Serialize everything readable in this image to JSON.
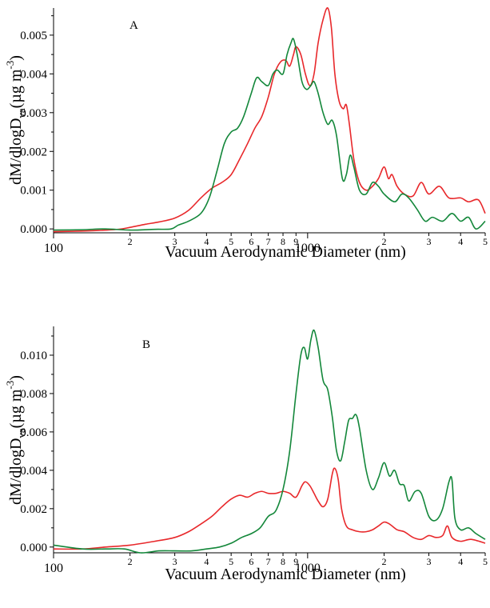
{
  "chart_data": [
    {
      "panel_label": "A",
      "type": "line",
      "xscale": "log",
      "xlim": [
        100,
        5000
      ],
      "ylim": [
        -0.0001,
        0.0057
      ],
      "xlabel": "Vacuum Aerodynamic Diameter (nm)",
      "ylabel": {
        "main": "dM/dlogD",
        "sub": "va",
        "tail": "(µg m",
        "exp": "-3",
        "close": ")"
      },
      "x_tick_labels": [
        {
          "x": 100,
          "label": "100"
        },
        {
          "x": 200,
          "label": "2"
        },
        {
          "x": 300,
          "label": "3"
        },
        {
          "x": 400,
          "label": "4"
        },
        {
          "x": 500,
          "label": "5"
        },
        {
          "x": 600,
          "label": "6"
        },
        {
          "x": 700,
          "label": "7"
        },
        {
          "x": 800,
          "label": "8"
        },
        {
          "x": 900,
          "label": "9"
        },
        {
          "x": 1000,
          "label": "1000"
        },
        {
          "x": 2000,
          "label": "2"
        },
        {
          "x": 3000,
          "label": "3"
        },
        {
          "x": 4000,
          "label": "4"
        },
        {
          "x": 5000,
          "label": "5"
        }
      ],
      "y_ticks": [
        {
          "v": 0.0,
          "label": "0.000"
        },
        {
          "v": 0.001,
          "label": "0.001"
        },
        {
          "v": 0.002,
          "label": "0.002"
        },
        {
          "v": 0.003,
          "label": "0.003"
        },
        {
          "v": 0.004,
          "label": "0.004"
        },
        {
          "v": 0.005,
          "label": "0.005"
        }
      ],
      "series": [
        {
          "color": "#e8282b",
          "points": [
            [
              100,
              -7e-05
            ],
            [
              120,
              -6e-05
            ],
            [
              150,
              -4e-05
            ],
            [
              180,
              -1e-05
            ],
            [
              200,
              4e-05
            ],
            [
              230,
              0.00012
            ],
            [
              260,
              0.00018
            ],
            [
              300,
              0.00028
            ],
            [
              340,
              0.00048
            ],
            [
              380,
              0.0008
            ],
            [
              420,
              0.00105
            ],
            [
              460,
              0.0012
            ],
            [
              500,
              0.0014
            ],
            [
              540,
              0.0018
            ],
            [
              580,
              0.0022
            ],
            [
              620,
              0.0026
            ],
            [
              660,
              0.0029
            ],
            [
              700,
              0.0034
            ],
            [
              740,
              0.004
            ],
            [
              780,
              0.0043
            ],
            [
              820,
              0.00435
            ],
            [
              850,
              0.0042
            ],
            [
              880,
              0.0045
            ],
            [
              900,
              0.0047
            ],
            [
              940,
              0.0045
            ],
            [
              980,
              0.004
            ],
            [
              1020,
              0.0037
            ],
            [
              1060,
              0.004
            ],
            [
              1100,
              0.0048
            ],
            [
              1150,
              0.0054
            ],
            [
              1200,
              0.0057
            ],
            [
              1240,
              0.0052
            ],
            [
              1280,
              0.004
            ],
            [
              1330,
              0.0033
            ],
            [
              1380,
              0.0031
            ],
            [
              1420,
              0.0032
            ],
            [
              1460,
              0.0027
            ],
            [
              1520,
              0.0018
            ],
            [
              1600,
              0.0012
            ],
            [
              1700,
              0.001
            ],
            [
              1800,
              0.0011
            ],
            [
              1900,
              0.0013
            ],
            [
              2000,
              0.0016
            ],
            [
              2080,
              0.0013
            ],
            [
              2150,
              0.0014
            ],
            [
              2250,
              0.0011
            ],
            [
              2400,
              0.0009
            ],
            [
              2600,
              0.00085
            ],
            [
              2800,
              0.0012
            ],
            [
              3000,
              0.0009
            ],
            [
              3300,
              0.0011
            ],
            [
              3600,
              0.0008
            ],
            [
              4000,
              0.0008
            ],
            [
              4300,
              0.0007
            ],
            [
              4700,
              0.00075
            ],
            [
              5000,
              0.0004
            ]
          ]
        },
        {
          "color": "#13873a",
          "points": [
            [
              100,
              -3e-05
            ],
            [
              130,
              -2e-05
            ],
            [
              160,
              0.0
            ],
            [
              200,
              -3e-05
            ],
            [
              250,
              -1e-05
            ],
            [
              290,
              0.0
            ],
            [
              310,
              0.0001
            ],
            [
              340,
              0.0002
            ],
            [
              380,
              0.0004
            ],
            [
              410,
              0.0008
            ],
            [
              440,
              0.0015
            ],
            [
              470,
              0.0022
            ],
            [
              500,
              0.0025
            ],
            [
              530,
              0.0026
            ],
            [
              560,
              0.0029
            ],
            [
              600,
              0.0035
            ],
            [
              630,
              0.0039
            ],
            [
              660,
              0.0038
            ],
            [
              700,
              0.0037
            ],
            [
              730,
              0.004
            ],
            [
              760,
              0.0041
            ],
            [
              800,
              0.004
            ],
            [
              830,
              0.0045
            ],
            [
              860,
              0.0048
            ],
            [
              880,
              0.0049
            ],
            [
              910,
              0.0045
            ],
            [
              950,
              0.0038
            ],
            [
              990,
              0.0036
            ],
            [
              1030,
              0.0037
            ],
            [
              1060,
              0.0038
            ],
            [
              1100,
              0.0035
            ],
            [
              1150,
              0.003
            ],
            [
              1200,
              0.0027
            ],
            [
              1250,
              0.0028
            ],
            [
              1300,
              0.0024
            ],
            [
              1370,
              0.0013
            ],
            [
              1420,
              0.0014
            ],
            [
              1470,
              0.0019
            ],
            [
              1520,
              0.0016
            ],
            [
              1600,
              0.001
            ],
            [
              1700,
              0.0009
            ],
            [
              1800,
              0.0012
            ],
            [
              1900,
              0.0011
            ],
            [
              2000,
              0.0009
            ],
            [
              2200,
              0.0007
            ],
            [
              2350,
              0.0009
            ],
            [
              2500,
              0.0008
            ],
            [
              2700,
              0.0005
            ],
            [
              2900,
              0.0002
            ],
            [
              3100,
              0.0003
            ],
            [
              3400,
              0.0002
            ],
            [
              3700,
              0.0004
            ],
            [
              4000,
              0.0002
            ],
            [
              4300,
              0.0003
            ],
            [
              4600,
              0.0
            ],
            [
              5000,
              0.0002
            ]
          ]
        }
      ]
    },
    {
      "panel_label": "B",
      "type": "line",
      "xscale": "log",
      "xlim": [
        100,
        5000
      ],
      "ylim": [
        -0.0003,
        0.0115
      ],
      "xlabel": "Vacuum Aerodynamic Diameter (nm)",
      "ylabel": {
        "main": "dM/dlogD",
        "sub": "va",
        "tail": "(µg m",
        "exp": "-3",
        "close": ")"
      },
      "x_tick_labels": [
        {
          "x": 100,
          "label": "100"
        },
        {
          "x": 200,
          "label": "2"
        },
        {
          "x": 300,
          "label": "3"
        },
        {
          "x": 400,
          "label": "4"
        },
        {
          "x": 500,
          "label": "5"
        },
        {
          "x": 600,
          "label": "6"
        },
        {
          "x": 700,
          "label": "7"
        },
        {
          "x": 800,
          "label": "8"
        },
        {
          "x": 900,
          "label": "9"
        },
        {
          "x": 1000,
          "label": "1000"
        },
        {
          "x": 2000,
          "label": "2"
        },
        {
          "x": 3000,
          "label": "3"
        },
        {
          "x": 4000,
          "label": "4"
        },
        {
          "x": 5000,
          "label": "5"
        }
      ],
      "y_ticks": [
        {
          "v": 0.0,
          "label": "0.000"
        },
        {
          "v": 0.002,
          "label": "0.002"
        },
        {
          "v": 0.004,
          "label": "0.004"
        },
        {
          "v": 0.006,
          "label": "0.006"
        },
        {
          "v": 0.008,
          "label": "0.008"
        },
        {
          "v": 0.01,
          "label": "0.010"
        }
      ],
      "series": [
        {
          "color": "#e8282b",
          "points": [
            [
              100,
              -0.0001
            ],
            [
              130,
              -0.0001
            ],
            [
              160,
              0.0
            ],
            [
              200,
              0.0001
            ],
            [
              250,
              0.0003
            ],
            [
              300,
              0.0005
            ],
            [
              340,
              0.0008
            ],
            [
              380,
              0.0012
            ],
            [
              420,
              0.0016
            ],
            [
              460,
              0.0021
            ],
            [
              500,
              0.0025
            ],
            [
              540,
              0.0027
            ],
            [
              580,
              0.0026
            ],
            [
              620,
              0.0028
            ],
            [
              660,
              0.0029
            ],
            [
              700,
              0.0028
            ],
            [
              750,
              0.0028
            ],
            [
              800,
              0.0029
            ],
            [
              850,
              0.0028
            ],
            [
              900,
              0.0026
            ],
            [
              950,
              0.0032
            ],
            [
              980,
              0.0034
            ],
            [
              1020,
              0.0032
            ],
            [
              1060,
              0.0028
            ],
            [
              1100,
              0.0024
            ],
            [
              1150,
              0.0021
            ],
            [
              1200,
              0.0025
            ],
            [
              1250,
              0.0038
            ],
            [
              1280,
              0.0041
            ],
            [
              1320,
              0.0035
            ],
            [
              1360,
              0.002
            ],
            [
              1420,
              0.0011
            ],
            [
              1500,
              0.0009
            ],
            [
              1600,
              0.0008
            ],
            [
              1700,
              0.0008
            ],
            [
              1800,
              0.0009
            ],
            [
              1900,
              0.0011
            ],
            [
              2000,
              0.0013
            ],
            [
              2100,
              0.0012
            ],
            [
              2250,
              0.0009
            ],
            [
              2400,
              0.0008
            ],
            [
              2600,
              0.0005
            ],
            [
              2800,
              0.0004
            ],
            [
              3000,
              0.0006
            ],
            [
              3200,
              0.0005
            ],
            [
              3400,
              0.0006
            ],
            [
              3550,
              0.0011
            ],
            [
              3700,
              0.0005
            ],
            [
              4000,
              0.0003
            ],
            [
              4400,
              0.0004
            ],
            [
              5000,
              0.0002
            ]
          ]
        },
        {
          "color": "#13873a",
          "points": [
            [
              100,
              0.0001
            ],
            [
              130,
              -0.0001
            ],
            [
              160,
              -0.0001
            ],
            [
              190,
              -0.0001
            ],
            [
              220,
              -0.0003
            ],
            [
              260,
              -0.0002
            ],
            [
              300,
              -0.0002
            ],
            [
              350,
              -0.0002
            ],
            [
              400,
              -0.0001
            ],
            [
              450,
              0.0
            ],
            [
              500,
              0.0002
            ],
            [
              550,
              0.0005
            ],
            [
              600,
              0.0007
            ],
            [
              650,
              0.001
            ],
            [
              700,
              0.0016
            ],
            [
              750,
              0.0019
            ],
            [
              800,
              0.003
            ],
            [
              850,
              0.005
            ],
            [
              900,
              0.008
            ],
            [
              940,
              0.01
            ],
            [
              970,
              0.0104
            ],
            [
              1000,
              0.0098
            ],
            [
              1030,
              0.0108
            ],
            [
              1060,
              0.0113
            ],
            [
              1100,
              0.0104
            ],
            [
              1150,
              0.0087
            ],
            [
              1200,
              0.0082
            ],
            [
              1250,
              0.0068
            ],
            [
              1300,
              0.005
            ],
            [
              1350,
              0.0045
            ],
            [
              1400,
              0.0055
            ],
            [
              1450,
              0.0066
            ],
            [
              1500,
              0.0067
            ],
            [
              1550,
              0.0069
            ],
            [
              1600,
              0.0062
            ],
            [
              1700,
              0.004
            ],
            [
              1800,
              0.003
            ],
            [
              1900,
              0.0036
            ],
            [
              2000,
              0.0044
            ],
            [
              2100,
              0.0037
            ],
            [
              2200,
              0.004
            ],
            [
              2300,
              0.0033
            ],
            [
              2400,
              0.0032
            ],
            [
              2500,
              0.0024
            ],
            [
              2650,
              0.0029
            ],
            [
              2800,
              0.0028
            ],
            [
              3000,
              0.0016
            ],
            [
              3200,
              0.0014
            ],
            [
              3400,
              0.002
            ],
            [
              3600,
              0.0034
            ],
            [
              3700,
              0.0035
            ],
            [
              3800,
              0.0015
            ],
            [
              4000,
              0.0009
            ],
            [
              4300,
              0.001
            ],
            [
              4600,
              0.0007
            ],
            [
              5000,
              0.0004
            ]
          ]
        }
      ]
    }
  ]
}
